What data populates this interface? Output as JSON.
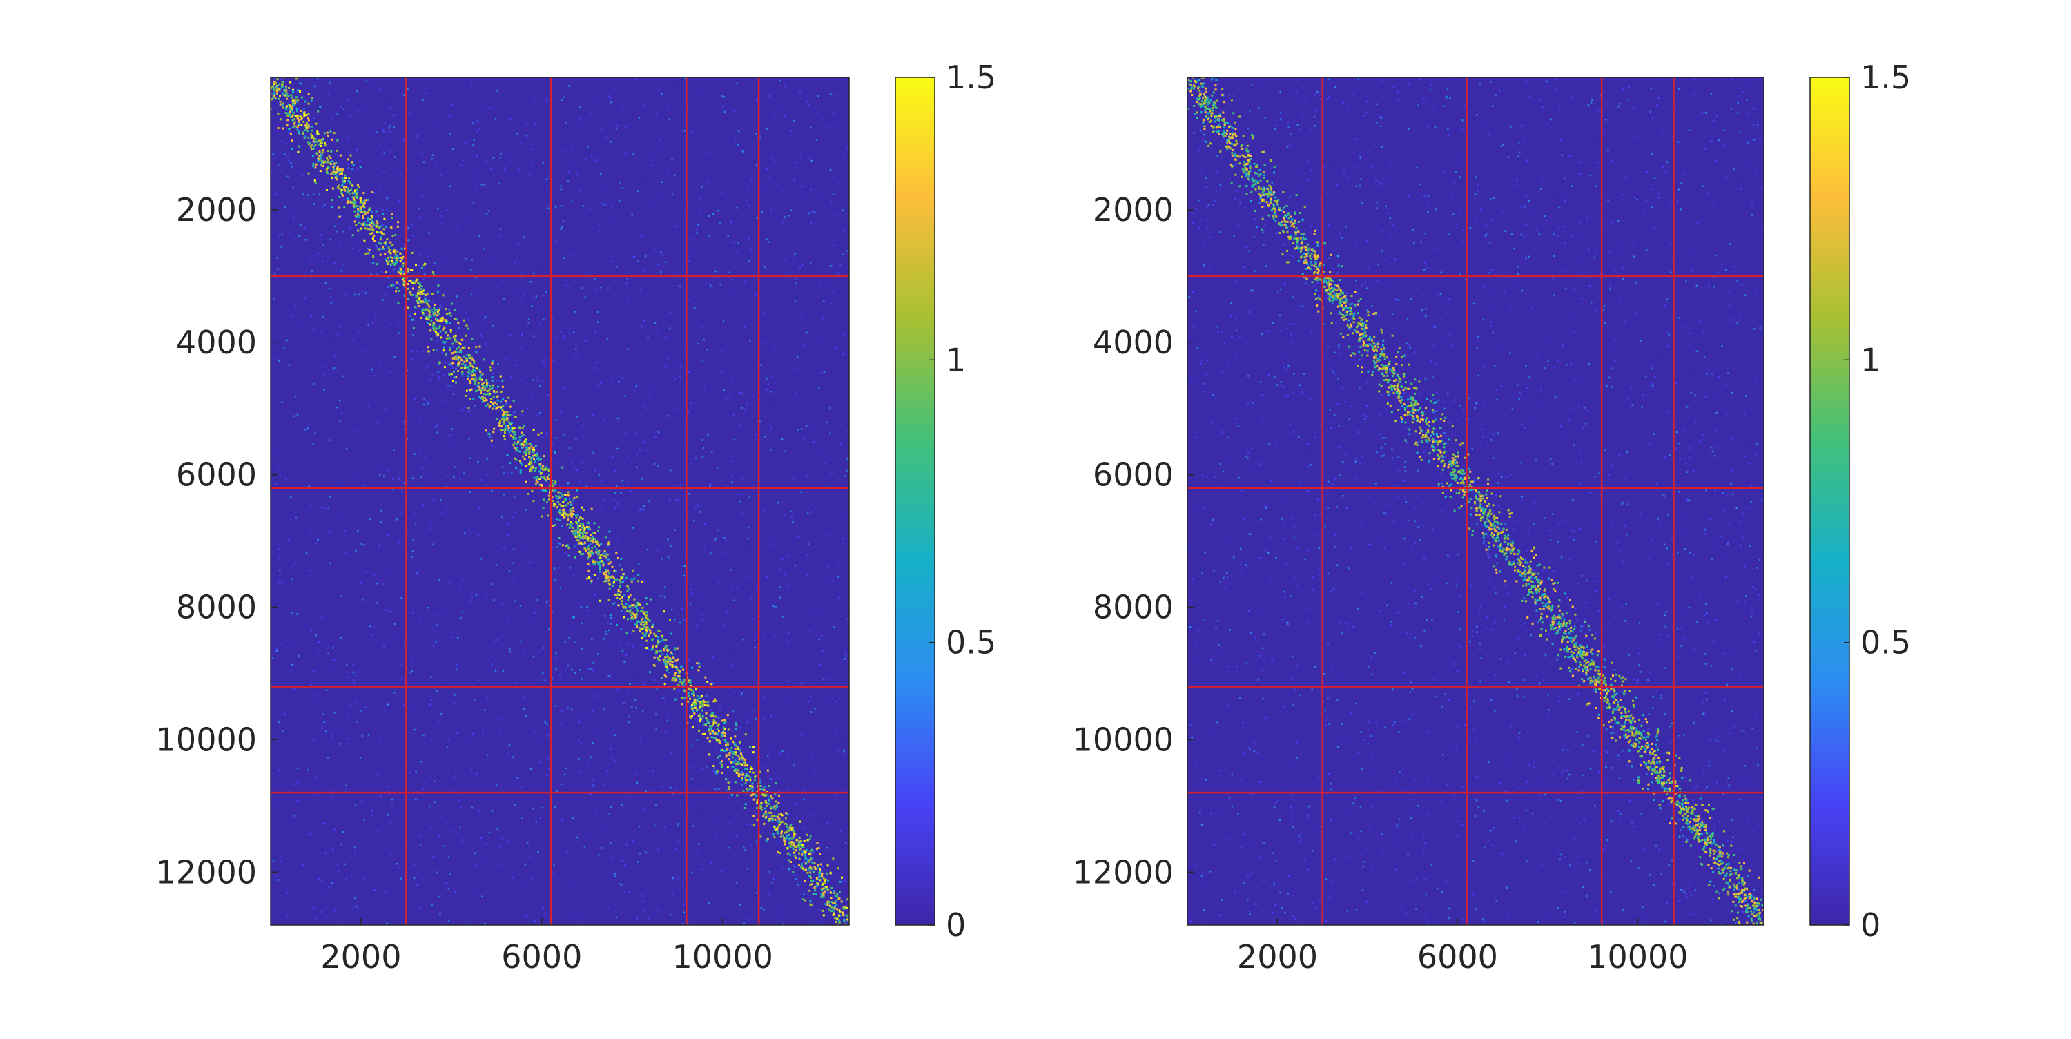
{
  "colors": {
    "background": "#3b2bab",
    "divider": "#d6202e",
    "axis": "#262626",
    "colormap": [
      "#3e26a8",
      "#4743f6",
      "#2d8cf2",
      "#17b0c8",
      "#42c07a",
      "#a7c033",
      "#fcbe3a",
      "#f9fb15"
    ]
  },
  "chart_data": [
    {
      "type": "heatmap",
      "panel": "left",
      "title": "",
      "xlabel": "",
      "ylabel": "",
      "xlim": [
        0,
        12800
      ],
      "ylim": [
        12800,
        0
      ],
      "xticks": [
        "2000",
        "6000",
        "10000"
      ],
      "xtick_values": [
        2000,
        6000,
        10000
      ],
      "yticks": [
        "2000",
        "4000",
        "6000",
        "8000",
        "10000",
        "12000"
      ],
      "ytick_values": [
        2000,
        4000,
        6000,
        8000,
        10000,
        12000
      ],
      "block_boundaries": [
        3000,
        6200,
        9200,
        10800
      ],
      "colorbar": {
        "range": [
          0,
          1.5
        ],
        "ticks": [
          "0",
          "0.5",
          "1",
          "1.5"
        ],
        "tick_values": [
          0,
          0.5,
          1,
          1.5
        ],
        "colormap": "parula"
      },
      "structure": "Strong positive diagonal band; within-block interactions denser in the block between 6200 and 9200",
      "grid": false
    },
    {
      "type": "heatmap",
      "panel": "right",
      "title": "",
      "xlabel": "",
      "ylabel": "",
      "xlim": [
        0,
        12800
      ],
      "ylim": [
        12800,
        0
      ],
      "xticks": [
        "2000",
        "6000",
        "10000"
      ],
      "xtick_values": [
        2000,
        6000,
        10000
      ],
      "yticks": [
        "2000",
        "4000",
        "6000",
        "8000",
        "10000",
        "12000"
      ],
      "ytick_values": [
        2000,
        4000,
        6000,
        8000,
        10000,
        12000
      ],
      "block_boundaries": [
        3000,
        6200,
        9200,
        10800
      ],
      "colorbar": {
        "range": [
          0,
          1.5
        ],
        "ticks": [
          "0",
          "0.5",
          "1",
          "1.5"
        ],
        "tick_values": [
          0,
          0.5,
          1,
          1.5
        ],
        "colormap": "parula"
      },
      "structure": "Diagonal band slightly weaker; denser within-block interactions in the 9200-10800 block",
      "grid": false
    }
  ]
}
